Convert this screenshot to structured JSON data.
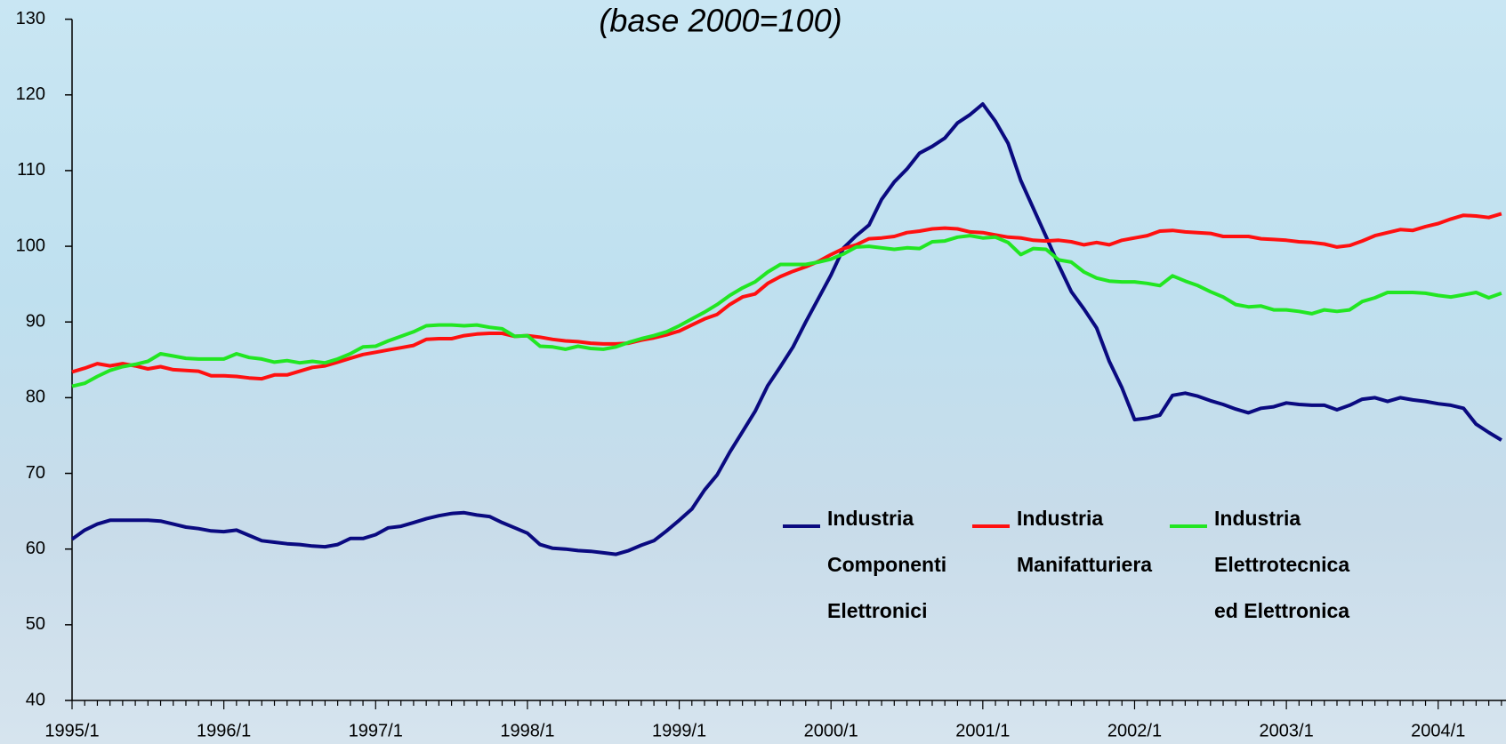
{
  "chart_data": {
    "type": "line",
    "title": "(base 2000=100)",
    "categories": [
      "1995/1",
      null,
      null,
      null,
      null,
      null,
      null,
      null,
      null,
      null,
      null,
      null,
      "1996/1",
      null,
      null,
      null,
      null,
      null,
      null,
      null,
      null,
      null,
      null,
      null,
      "1997/1",
      null,
      null,
      null,
      null,
      null,
      null,
      null,
      null,
      null,
      null,
      null,
      "1998/1",
      null,
      null,
      null,
      null,
      null,
      null,
      null,
      null,
      null,
      null,
      null,
      "1999/1",
      null,
      null,
      null,
      null,
      null,
      null,
      null,
      null,
      null,
      null,
      null,
      "2000/1",
      null,
      null,
      null,
      null,
      null,
      null,
      null,
      null,
      null,
      null,
      null,
      "2001/1",
      null,
      null,
      null,
      null,
      null,
      null,
      null,
      null,
      null,
      null,
      null,
      "2002/1",
      null,
      null,
      null,
      null,
      null,
      null,
      null,
      null,
      null,
      null,
      null,
      "2003/1",
      null,
      null,
      null,
      null,
      null,
      null,
      null,
      null,
      null,
      null,
      null,
      "2004/1",
      null,
      null,
      null,
      null,
      null
    ],
    "series": [
      {
        "name": "Industria\nComponenti\nElettronici",
        "color": "#0a0a80",
        "values": [
          61.3,
          62.5,
          63.3,
          63.8,
          63.8,
          63.8,
          63.8,
          63.7,
          63.3,
          62.9,
          62.7,
          62.4,
          62.3,
          62.5,
          61.8,
          61.1,
          60.9,
          60.7,
          60.6,
          60.4,
          60.3,
          60.6,
          61.4,
          61.4,
          61.9,
          62.8,
          63.0,
          63.5,
          64.0,
          64.4,
          64.7,
          64.8,
          64.5,
          64.3,
          63.5,
          62.8,
          62.1,
          60.6,
          60.1,
          60.0,
          59.8,
          59.7,
          59.5,
          59.3,
          59.8,
          60.5,
          61.1,
          62.4,
          63.8,
          65.3,
          67.8,
          69.8,
          72.8,
          75.5,
          78.2,
          81.6,
          84.1,
          86.7,
          90.0,
          93.1,
          96.2,
          99.8,
          101.4,
          102.8,
          106.2,
          108.5,
          110.2,
          112.3,
          113.2,
          114.3,
          116.3,
          117.4,
          118.8,
          116.5,
          113.6,
          108.7,
          105.0,
          101.3,
          97.5,
          94.0,
          91.7,
          89.2,
          84.8,
          81.3,
          77.1,
          77.3,
          77.7,
          80.3,
          80.6,
          80.2,
          79.6,
          79.1,
          78.5,
          78.0,
          78.6,
          78.8,
          79.3,
          79.1,
          79.0,
          79.0,
          78.4,
          79.0,
          79.8,
          80.0,
          79.5,
          80.0,
          79.7,
          79.5,
          79.2,
          79.0,
          78.6,
          76.5,
          75.4,
          74.4
        ]
      },
      {
        "name": "Industria\nManifatturiera",
        "color": "#ff1010",
        "values": [
          83.4,
          83.9,
          84.5,
          84.2,
          84.5,
          84.2,
          83.8,
          84.1,
          83.7,
          83.6,
          83.5,
          82.9,
          82.9,
          82.8,
          82.6,
          82.5,
          83.0,
          83.0,
          83.5,
          84.0,
          84.2,
          84.7,
          85.2,
          85.7,
          86.0,
          86.3,
          86.6,
          86.9,
          87.7,
          87.8,
          87.8,
          88.2,
          88.4,
          88.5,
          88.5,
          88.1,
          88.2,
          88.0,
          87.7,
          87.5,
          87.4,
          87.2,
          87.1,
          87.1,
          87.2,
          87.6,
          87.9,
          88.3,
          88.8,
          89.6,
          90.4,
          91.0,
          92.3,
          93.3,
          93.7,
          95.1,
          96.0,
          96.7,
          97.3,
          98.0,
          98.9,
          99.7,
          100.2,
          101.0,
          101.1,
          101.3,
          101.8,
          102.0,
          102.3,
          102.4,
          102.3,
          101.9,
          101.8,
          101.5,
          101.2,
          101.1,
          100.8,
          100.7,
          100.8,
          100.6,
          100.2,
          100.5,
          100.2,
          100.8,
          101.1,
          101.4,
          102.0,
          102.1,
          101.9,
          101.8,
          101.7,
          101.3,
          101.3,
          101.3,
          101.0,
          100.9,
          100.8,
          100.6,
          100.5,
          100.3,
          99.9,
          100.1,
          100.7,
          101.4,
          101.8,
          102.2,
          102.1,
          102.6,
          103.0,
          103.6,
          104.1,
          104.0,
          103.8,
          104.3
        ]
      },
      {
        "name": "Industria\nElettrotecnica\ned Elettronica",
        "color": "#22e622",
        "values": [
          81.5,
          81.9,
          82.8,
          83.6,
          84.1,
          84.4,
          84.8,
          85.8,
          85.5,
          85.2,
          85.1,
          85.1,
          85.1,
          85.8,
          85.3,
          85.1,
          84.7,
          84.9,
          84.6,
          84.8,
          84.6,
          85.1,
          85.8,
          86.7,
          86.8,
          87.5,
          88.1,
          88.7,
          89.5,
          89.6,
          89.6,
          89.5,
          89.6,
          89.3,
          89.1,
          88.1,
          88.2,
          86.8,
          86.7,
          86.4,
          86.8,
          86.5,
          86.4,
          86.7,
          87.3,
          87.8,
          88.2,
          88.7,
          89.5,
          90.4,
          91.3,
          92.3,
          93.5,
          94.5,
          95.3,
          96.6,
          97.6,
          97.6,
          97.6,
          97.9,
          98.3,
          99.0,
          99.9,
          100.0,
          99.8,
          99.6,
          99.8,
          99.7,
          100.6,
          100.7,
          101.2,
          101.4,
          101.1,
          101.2,
          100.5,
          98.9,
          99.7,
          99.6,
          98.2,
          97.9,
          96.6,
          95.8,
          95.4,
          95.3,
          95.3,
          95.1,
          94.8,
          96.1,
          95.4,
          94.8,
          94.0,
          93.3,
          92.3,
          92.0,
          92.1,
          91.6,
          91.6,
          91.4,
          91.1,
          91.6,
          91.4,
          91.6,
          92.7,
          93.2,
          93.9,
          93.9,
          93.9,
          93.8,
          93.5,
          93.3,
          93.6,
          93.9,
          93.2,
          93.8
        ]
      }
    ],
    "ylim": [
      40,
      130
    ],
    "yticks": [
      40,
      50,
      60,
      70,
      80,
      90,
      100,
      110,
      120,
      130
    ]
  }
}
